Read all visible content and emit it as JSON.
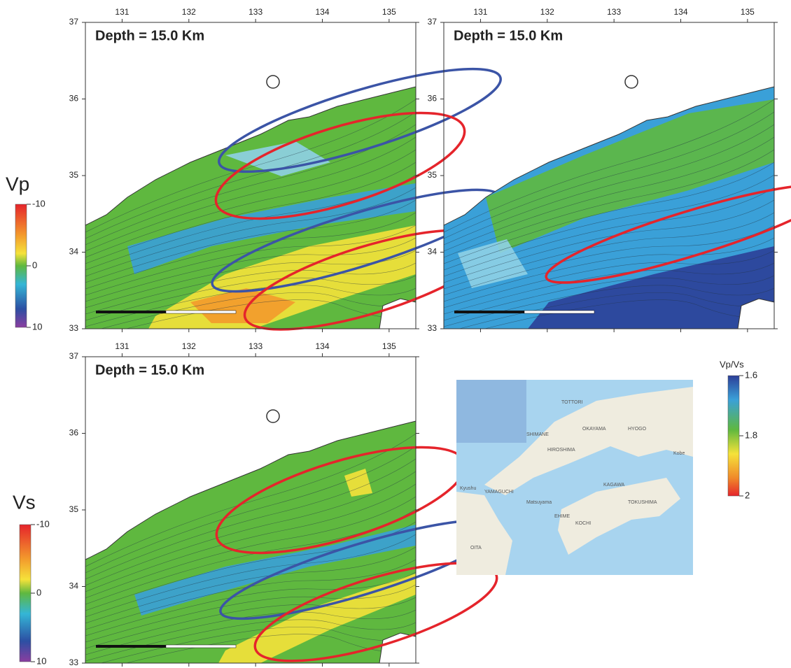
{
  "panels": [
    {
      "title": "Depth = 15.0 Km",
      "xlim": [
        130.45,
        135.4
      ],
      "ylim": [
        33,
        37
      ],
      "xticks": [
        131,
        132,
        133,
        134,
        135
      ],
      "yticks": [
        33,
        34,
        35,
        36,
        37
      ]
    },
    {
      "title": "Depth = 15.0 Km",
      "xlim": [
        130.45,
        135.4
      ],
      "ylim": [
        33,
        37
      ],
      "xticks": [
        131,
        132,
        133,
        134,
        135
      ],
      "yticks": [
        33,
        34,
        35,
        36,
        37
      ]
    },
    {
      "title": "Depth = 15.0 Km",
      "xlim": [
        130.45,
        135.4
      ],
      "ylim": [
        33,
        37
      ],
      "xticks": [
        131,
        132,
        133,
        134,
        135
      ],
      "yticks": [
        33,
        34,
        35,
        36,
        37
      ]
    }
  ],
  "colorbars": [
    {
      "label": "Vp",
      "lim": [
        -10,
        10
      ],
      "ticks": [
        -10,
        0,
        10
      ]
    },
    {
      "label": "Vs",
      "lim": [
        -10,
        10
      ],
      "ticks": [
        -10,
        0,
        10
      ]
    },
    {
      "label": "Vp/Vs",
      "lim": [
        1.6,
        2
      ],
      "ticks": [
        1.6,
        1.8,
        2
      ]
    }
  ],
  "inset_map": {
    "labels": [
      "TOTTORI",
      "SHIMANE",
      "OKAYAMA",
      "HYOGO",
      "HIROSHIMA",
      "Kobe",
      "YAMAGUCHI",
      "KAGAWA",
      "Matsuyama",
      "TOKUSHIMA",
      "EHIME",
      "KOCHI",
      "OITA",
      "Kyushu"
    ]
  }
}
